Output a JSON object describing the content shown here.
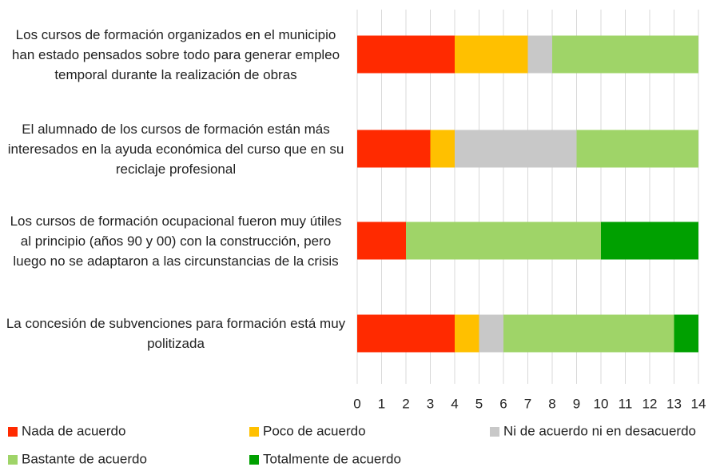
{
  "chart_data": {
    "type": "stacked_barh",
    "categories": [
      "Los cursos de formación organizados en el municipio han estado pensados sobre todo para generar empleo temporal durante la realización de obras",
      "El alumnado de los cursos de formación están más interesados en la ayuda económica del curso que en su reciclaje profesional",
      "Los cursos de formación ocupacional fueron muy útiles al principio (años 90 y 00) con la construcción, pero luego no se adaptaron a las circunstancias de la crisis",
      "La concesión de subvenciones para formación está muy politizada"
    ],
    "series": [
      {
        "name": "Nada de acuerdo",
        "color": "#ff2a00",
        "values": [
          4,
          3,
          2,
          4
        ]
      },
      {
        "name": "Poco de acuerdo",
        "color": "#ffc000",
        "values": [
          3,
          1,
          0,
          1
        ]
      },
      {
        "name": "Ni de acuerdo ni en desacuerdo",
        "color": "#c8c8c8",
        "values": [
          1,
          5,
          0,
          1
        ]
      },
      {
        "name": "Bastante de acuerdo",
        "color": "#9fd468",
        "values": [
          6,
          5,
          8,
          7
        ]
      },
      {
        "name": "Totalmente de acuerdo",
        "color": "#00a000",
        "values": [
          0,
          0,
          4,
          1
        ]
      }
    ],
    "xlim": [
      0,
      14
    ],
    "xticks": [
      0,
      1,
      2,
      3,
      4,
      5,
      6,
      7,
      8,
      9,
      10,
      11,
      12,
      13,
      14
    ],
    "grid": true,
    "legend": "bottom"
  }
}
